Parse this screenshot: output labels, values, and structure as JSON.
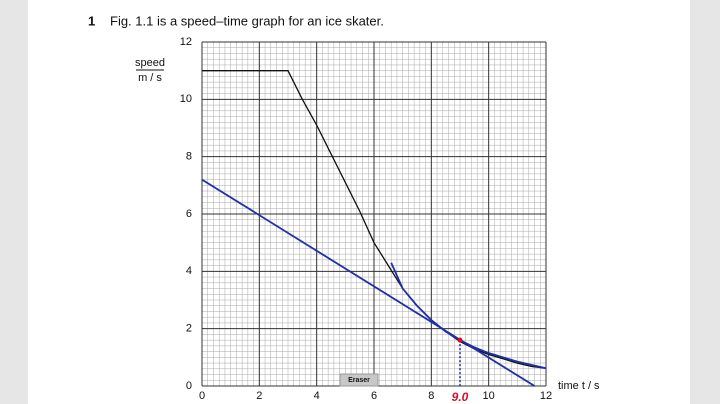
{
  "question": {
    "number": "1",
    "text": "Fig. 1.1 is a speed–time graph for an ice skater."
  },
  "eraser_button": "Eraser",
  "chart_data": {
    "type": "line",
    "ylabel": {
      "quantity": "speed",
      "unit": "m / s"
    },
    "xlabel": "time t / s",
    "xlim": [
      0,
      12
    ],
    "ylim": [
      0,
      12
    ],
    "xticks": [
      0,
      2,
      4,
      6,
      8,
      10,
      12
    ],
    "yticks": [
      0,
      2,
      4,
      6,
      8,
      10,
      12
    ],
    "grid": true,
    "series": [
      {
        "color": "#111111",
        "x": [
          0,
          3,
          3.5,
          4,
          4.5,
          5,
          5.5,
          6,
          6.5,
          7,
          7.5,
          8,
          8.5,
          9,
          9.5,
          10,
          10.5,
          11,
          11.5,
          12
        ],
        "values": [
          11,
          11,
          10,
          9.1,
          8.1,
          7.1,
          6.1,
          5.0,
          4.2,
          3.4,
          2.8,
          2.3,
          1.9,
          1.55,
          1.3,
          1.1,
          0.95,
          0.8,
          0.68,
          0.62
        ]
      },
      {
        "color": "#1f2fa8",
        "x": [
          0,
          11.6
        ],
        "values": [
          7.2,
          0
        ]
      },
      {
        "color": "#1f2fa8",
        "x": [
          6.6,
          7,
          7.5,
          8,
          8.5,
          9,
          9.5,
          10,
          11,
          12
        ],
        "values": [
          4.3,
          3.4,
          2.8,
          2.3,
          1.9,
          1.6,
          1.35,
          1.15,
          0.85,
          0.62
        ]
      }
    ],
    "annotations": [
      {
        "text": "9.0",
        "x": 9,
        "y": 1.6,
        "color": "#d0102a"
      }
    ]
  }
}
